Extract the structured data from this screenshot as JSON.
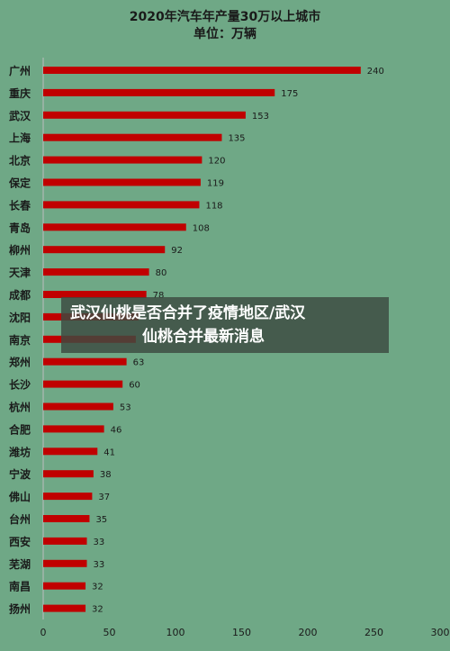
{
  "chart_data": {
    "type": "bar",
    "orientation": "horizontal",
    "title": "2020年汽车年产量30万以上城市",
    "subtitle": "单位：万辆",
    "categories": [
      "广州",
      "重庆",
      "武汉",
      "上海",
      "北京",
      "保定",
      "长春",
      "青岛",
      "柳州",
      "天津",
      "成都",
      "沈阳",
      "南京",
      "郑州",
      "长沙",
      "杭州",
      "合肥",
      "潍坊",
      "宁波",
      "佛山",
      "台州",
      "西安",
      "芜湖",
      "南昌",
      "扬州"
    ],
    "values": [
      240,
      175,
      153,
      135,
      120,
      119,
      118,
      108,
      92,
      80,
      78,
      72,
      70,
      63,
      60,
      53,
      46,
      41,
      38,
      37,
      35,
      33,
      33,
      32,
      32
    ],
    "data_labels": [
      "240",
      "175",
      "153",
      "135",
      "120",
      "119",
      "118",
      "108",
      "92",
      "80",
      "78",
      "",
      "",
      "63",
      "60",
      "53",
      "46",
      "41",
      "38",
      "37",
      "35",
      "33",
      "33",
      "32",
      "32"
    ],
    "xlim": [
      0,
      300
    ],
    "xticks": [
      "0",
      "50",
      "100",
      "150",
      "200",
      "250",
      "300"
    ],
    "bar_color": "#c00000",
    "background_color": "#6fa886",
    "grid": false,
    "legend": "none"
  },
  "overlay": {
    "line1": "武汉仙桃是否合并了疫情地区/武汉",
    "line2": "仙桃合并最新消息"
  }
}
